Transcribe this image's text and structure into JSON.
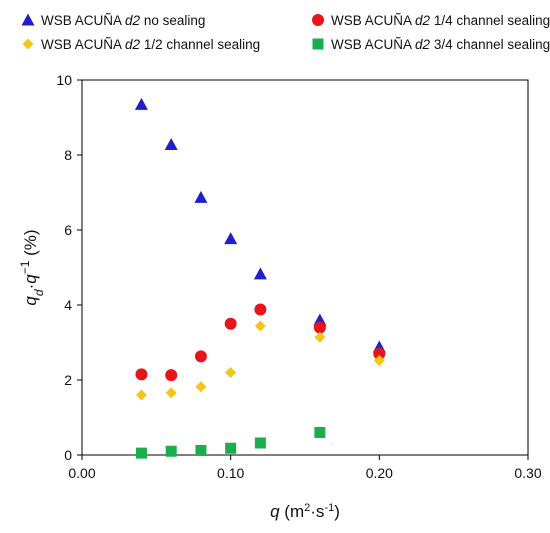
{
  "chart_data": {
    "type": "scatter",
    "title": "",
    "xlabel": "q (m2·s-1)",
    "ylabel": "qd·q-1 (%)",
    "xlim": [
      0.0,
      0.3
    ],
    "ylim": [
      0,
      10
    ],
    "xticks": [
      0.0,
      0.1,
      0.2,
      0.3
    ],
    "xtick_labels": [
      "0.00",
      "0.10",
      "0.20",
      "0.30"
    ],
    "yticks": [
      0,
      2,
      4,
      6,
      8,
      10
    ],
    "ytick_labels": [
      "0",
      "2",
      "4",
      "6",
      "8",
      "10"
    ],
    "grid": false,
    "legend_position": "top",
    "series": [
      {
        "name": "WSB ACUÑA d2 no sealing",
        "marker": "triangle-icon",
        "color": "#1f1fcc",
        "x": [
          0.04,
          0.06,
          0.08,
          0.1,
          0.12,
          0.16,
          0.2
        ],
        "y": [
          9.35,
          8.28,
          6.87,
          5.77,
          4.83,
          3.6,
          2.88
        ]
      },
      {
        "name": "WSB ACUÑA d2 1/4 channel sealing",
        "marker": "circle-icon",
        "color": "#e8141c",
        "x": [
          0.04,
          0.06,
          0.08,
          0.1,
          0.12,
          0.16,
          0.2
        ],
        "y": [
          2.15,
          2.13,
          2.63,
          3.5,
          3.88,
          3.4,
          2.7
        ]
      },
      {
        "name": "WSB ACUÑA d2 1/2 channel sealing",
        "marker": "diamond-icon",
        "color": "#f5c518",
        "x": [
          0.04,
          0.06,
          0.08,
          0.1,
          0.12,
          0.16,
          0.2
        ],
        "y": [
          1.6,
          1.66,
          1.82,
          2.2,
          3.44,
          3.14,
          2.52
        ]
      },
      {
        "name": "WSB ACUÑA d2 3/4 channel sealing",
        "marker": "square-icon",
        "color": "#1aae4e",
        "x": [
          0.04,
          0.06,
          0.08,
          0.1,
          0.12,
          0.16
        ],
        "y": [
          0.05,
          0.1,
          0.12,
          0.18,
          0.32,
          0.6
        ]
      }
    ],
    "legend_entries": [
      {
        "prefix": "WSB ACUÑA ",
        "italic": "d2",
        "suffix": " no sealing"
      },
      {
        "prefix": "WSB ACUÑA ",
        "italic": "d2",
        "suffix": " 1/4 channel sealing"
      },
      {
        "prefix": "WSB ACUÑA ",
        "italic": "d2",
        "suffix": " 1/2 channel sealing"
      },
      {
        "prefix": "WSB ACUÑA ",
        "italic": "d2",
        "suffix": " 3/4 channel sealing"
      }
    ],
    "xlabel_parts": {
      "var": "q",
      "open": " (m",
      "sup1": "2",
      "mid": "·s",
      "sup2": "-1",
      "close": ")"
    },
    "ylabel_parts": {
      "var1": "q",
      "sub": "d",
      "dot": "·",
      "var2": "q",
      "sup": "−1",
      "unit": " (%)"
    }
  }
}
